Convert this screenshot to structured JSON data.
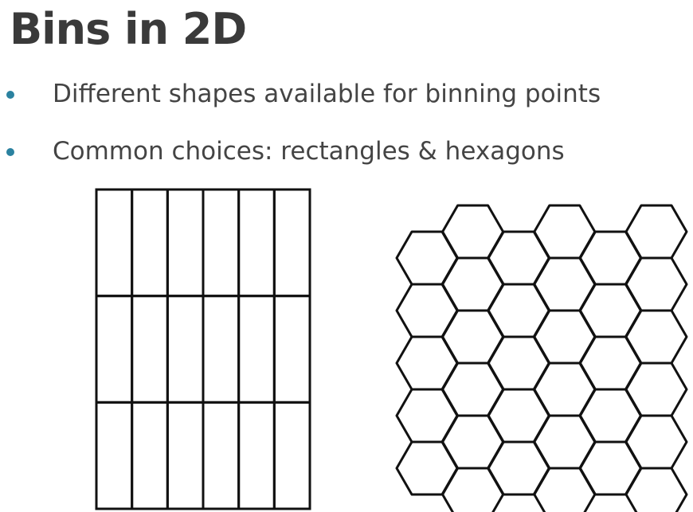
{
  "slide": {
    "title": "Bins in 2D",
    "bullets": [
      "Different shapes available for binning points",
      "Common choices: rectangles & hexagons"
    ],
    "bullet_color": "#2b82a0",
    "text_color": "#444444",
    "title_color": "#3a3a3a"
  },
  "rect_grid": {
    "columns": 6,
    "rows": 3,
    "stroke": "#111111"
  },
  "hex_grid": {
    "columns": 6,
    "rows_per_column": [
      5,
      6,
      5,
      6,
      5,
      6
    ],
    "stroke": "#111111"
  }
}
